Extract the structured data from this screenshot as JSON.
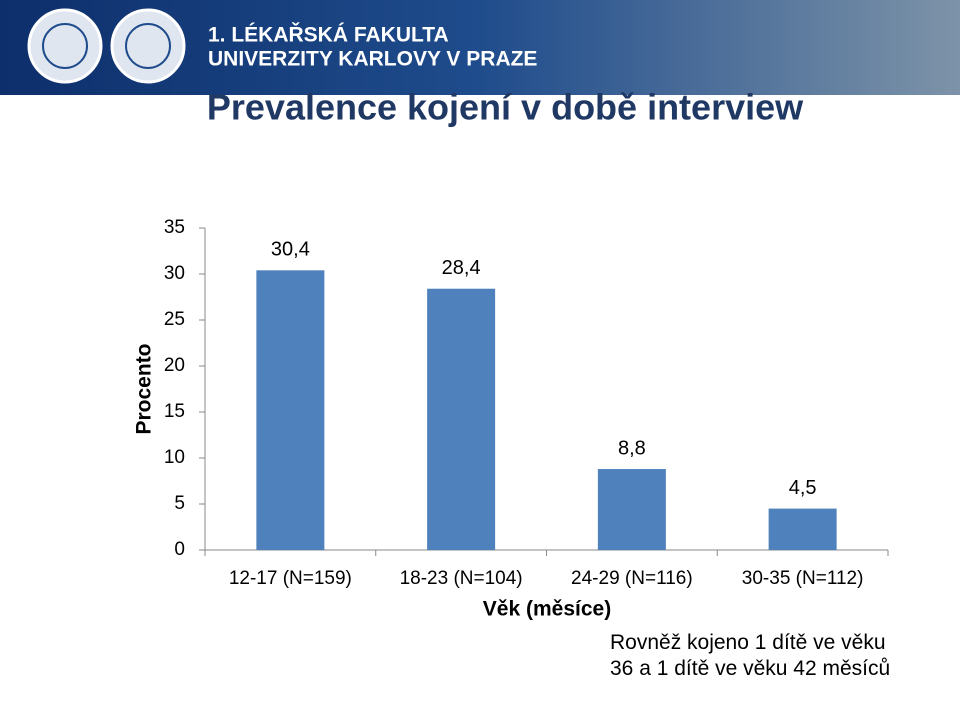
{
  "header": {
    "line1": "1. LÉKAŘSKÁ FAKULTA",
    "line2": "UNIVERZITY KARLOVY V PRAZE"
  },
  "chart_data": {
    "type": "bar",
    "title": "Prevalence kojení v době interview",
    "categories": [
      "12-17 (N=159)",
      "18-23 (N=104)",
      "24-29 (N=116)",
      "30-35 (N=112)"
    ],
    "values": [
      30.4,
      28.4,
      8.8,
      4.5
    ],
    "value_labels": [
      "30,4",
      "28,4",
      "8,8",
      "4,5"
    ],
    "color": "#4f81bd",
    "ylim": [
      0,
      35
    ],
    "yticks": [
      0,
      5,
      10,
      15,
      20,
      25,
      30,
      35
    ],
    "ylabel": "Procento",
    "xlabel": "Věk (měsíce)",
    "annotation": "Rovněž kojeno 1 dítě ve věku 36 a 1 dítě ve věku 42 měsíců"
  }
}
